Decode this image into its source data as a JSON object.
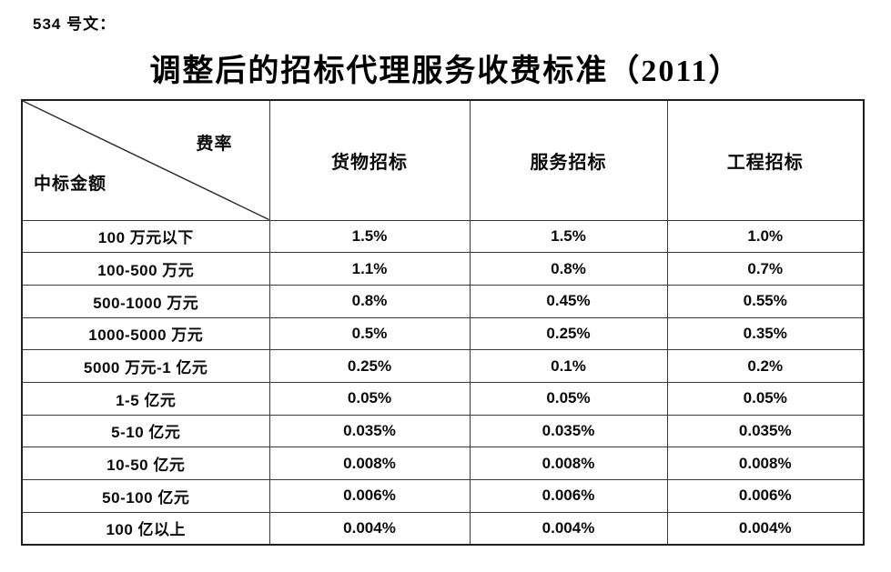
{
  "page": {
    "doc_label": "534 号文：",
    "title": "调整后的招标代理服务收费标准（2011）"
  },
  "table": {
    "corner": {
      "rate_label": "费率",
      "amount_label": "中标金额"
    },
    "columns": [
      "货物招标",
      "服务招标",
      "工程招标"
    ],
    "rows": [
      {
        "label": "100 万元以下",
        "values": [
          "1.5%",
          "1.5%",
          "1.0%"
        ]
      },
      {
        "label": "100-500 万元",
        "values": [
          "1.1%",
          "0.8%",
          "0.7%"
        ]
      },
      {
        "label": "500-1000 万元",
        "values": [
          "0.8%",
          "0.45%",
          "0.55%"
        ]
      },
      {
        "label": "1000-5000 万元",
        "values": [
          "0.5%",
          "0.25%",
          "0.35%"
        ]
      },
      {
        "label": "5000 万元-1 亿元",
        "values": [
          "0.25%",
          "0.1%",
          "0.2%"
        ]
      },
      {
        "label": "1-5 亿元",
        "values": [
          "0.05%",
          "0.05%",
          "0.05%"
        ]
      },
      {
        "label": "5-10 亿元",
        "values": [
          "0.035%",
          "0.035%",
          "0.035%"
        ]
      },
      {
        "label": "10-50 亿元",
        "values": [
          "0.008%",
          "0.008%",
          "0.008%"
        ]
      },
      {
        "label": "50-100 亿元",
        "values": [
          "0.006%",
          "0.006%",
          "0.006%"
        ]
      },
      {
        "label": "100 亿以上",
        "values": [
          "0.004%",
          "0.004%",
          "0.004%"
        ]
      }
    ],
    "line_color": "#333333"
  }
}
